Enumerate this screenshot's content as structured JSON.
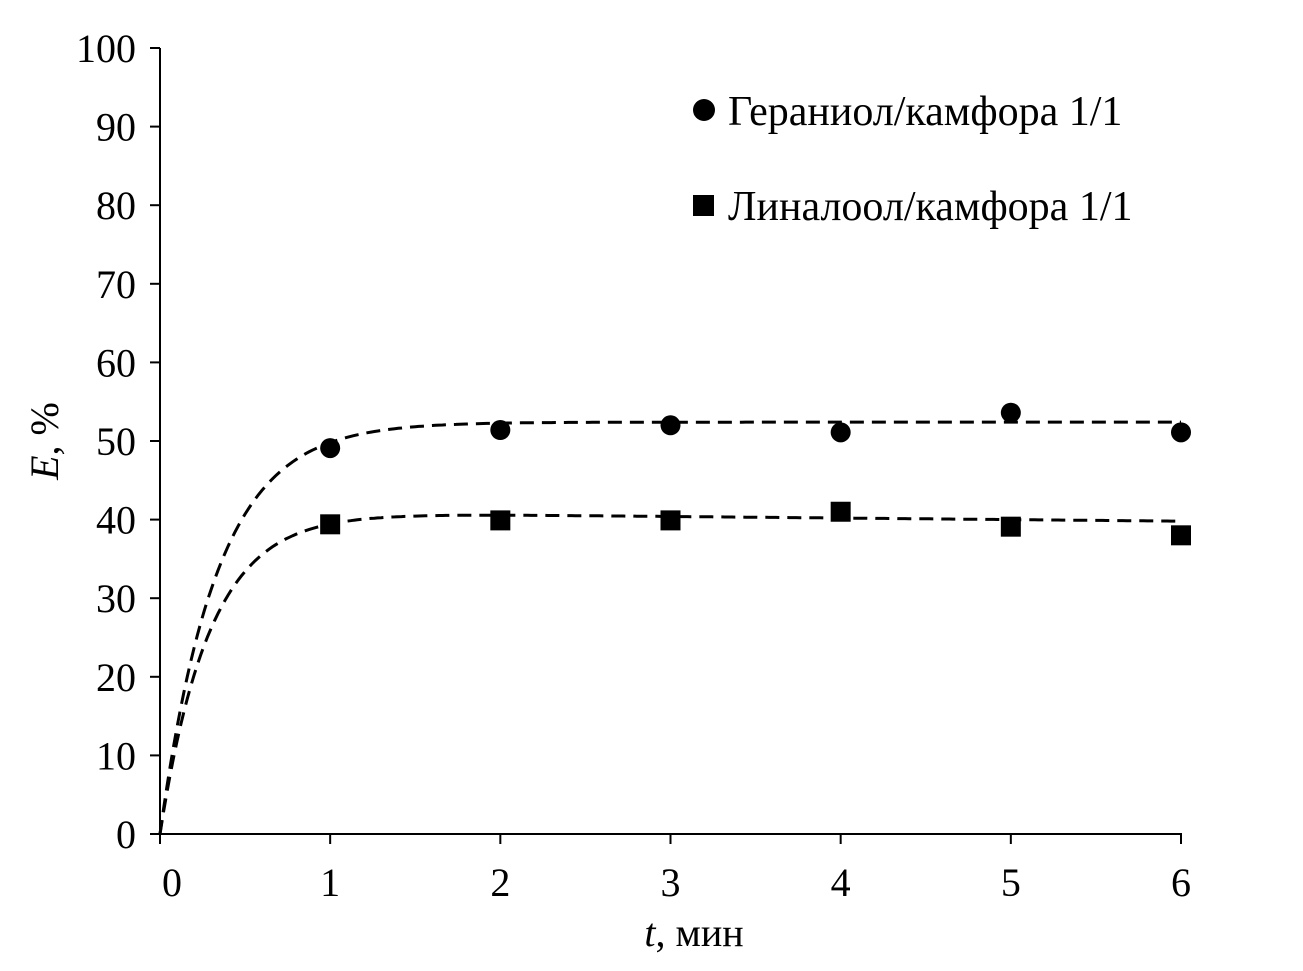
{
  "chart_data": {
    "type": "scatter",
    "title": "",
    "xlabel_var": "t",
    "xlabel_unit": ", мин",
    "ylabel_var": "E",
    "ylabel_unit": ", %",
    "xlim": [
      0,
      6
    ],
    "ylim": [
      0,
      100
    ],
    "xticks": [
      0,
      1,
      2,
      3,
      4,
      5,
      6
    ],
    "yticks": [
      0,
      10,
      20,
      30,
      40,
      50,
      60,
      70,
      80,
      90,
      100
    ],
    "grid": false,
    "legend_position": "top-right",
    "series": [
      {
        "name": "Гераниол/камфора 1/1",
        "marker": "circle",
        "x": [
          1,
          2,
          3,
          4,
          5,
          6
        ],
        "y": [
          49.1,
          51.4,
          52.0,
          51.1,
          53.6,
          51.1
        ],
        "fit": {
          "style": "dashed",
          "plateau": 52.4,
          "rate": 3.0,
          "drift": 0
        }
      },
      {
        "name": "Линалоол/камфора 1/1",
        "marker": "square",
        "x": [
          1,
          2,
          3,
          4,
          5,
          6
        ],
        "y": [
          39.4,
          39.9,
          39.9,
          41.0,
          39.1,
          38.0
        ],
        "fit": {
          "style": "dashed",
          "plateau": 41.0,
          "rate": 3.4,
          "drift": -0.2
        }
      }
    ],
    "color": "#000000"
  }
}
